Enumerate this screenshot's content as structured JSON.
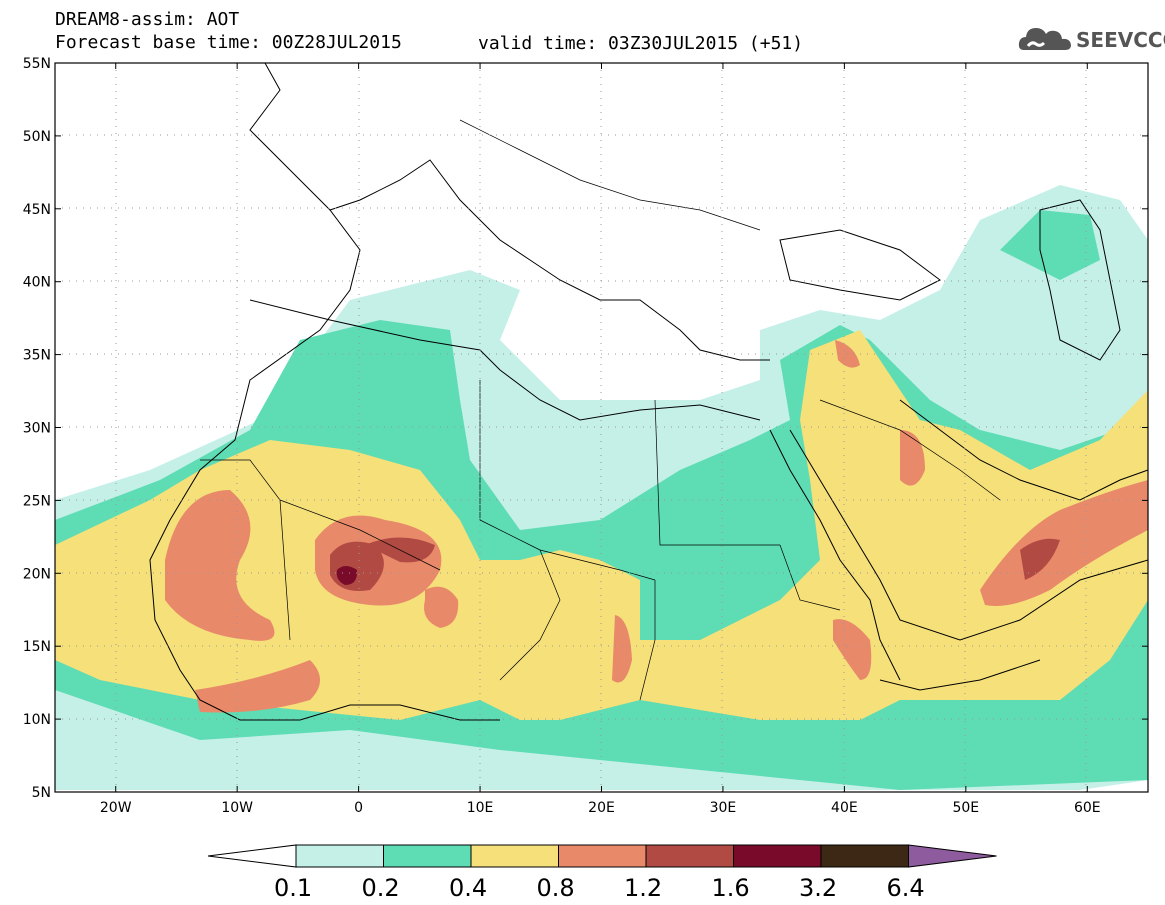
{
  "header": {
    "title": "DREAM8-assim: AOT",
    "base_time": "Forecast base time: 00Z28JUL2015",
    "valid_time": "valid time: 03Z30JUL2015 (+51)"
  },
  "logo": {
    "text": "SEEVCCC",
    "icon": "cloud-icon"
  },
  "map": {
    "lon_range": [
      -25,
      65
    ],
    "lat_range": [
      5,
      55
    ],
    "lat_labels": [
      "5N",
      "10N",
      "15N",
      "20N",
      "25N",
      "30N",
      "35N",
      "40N",
      "45N",
      "50N",
      "55N"
    ],
    "lon_labels": [
      "20W",
      "10W",
      "0",
      "10E",
      "20E",
      "30E",
      "40E",
      "50E",
      "60E"
    ]
  },
  "colorbar": {
    "boundaries": [
      "0.1",
      "0.2",
      "0.4",
      "0.8",
      "1.2",
      "1.6",
      "3.2",
      "6.4"
    ],
    "colors": [
      "#c4f0e8",
      "#5edcb4",
      "#f5e07a",
      "#e8896a",
      "#b24a44",
      "#7a0a2a",
      "#3c2814",
      "#8e5c9e"
    ]
  }
}
